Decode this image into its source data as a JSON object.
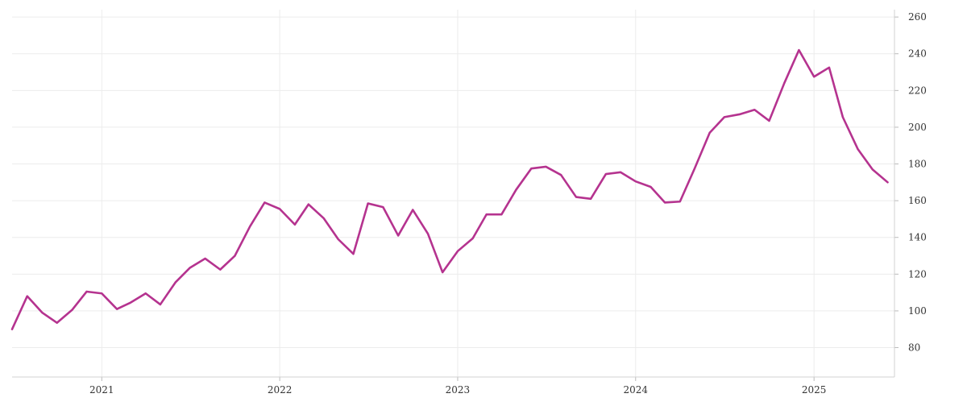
{
  "chart_data": {
    "type": "line",
    "title": "",
    "xlabel": "",
    "ylabel": "",
    "grid": true,
    "y_axis_side": "right",
    "ylim": [
      64,
      264
    ],
    "xlim": [
      "2020-07-01",
      "2025-06-15"
    ],
    "y_ticks": [
      80,
      100,
      120,
      140,
      160,
      180,
      200,
      220,
      240,
      260
    ],
    "x_ticks": [
      {
        "label": "2021",
        "date": "2021-01-01"
      },
      {
        "label": "2022",
        "date": "2022-01-01"
      },
      {
        "label": "2023",
        "date": "2023-01-01"
      },
      {
        "label": "2024",
        "date": "2024-01-01"
      },
      {
        "label": "2025",
        "date": "2025-01-01"
      }
    ],
    "series": [
      {
        "color": "#b5338f",
        "x": [
          "2020-07",
          "2020-08",
          "2020-09",
          "2020-10",
          "2020-11",
          "2020-12",
          "2021-01",
          "2021-02",
          "2021-03",
          "2021-04",
          "2021-05",
          "2021-06",
          "2021-07",
          "2021-08",
          "2021-09",
          "2021-10",
          "2021-11",
          "2021-12",
          "2022-01",
          "2022-02",
          "2022-03",
          "2022-04",
          "2022-05",
          "2022-06",
          "2022-07",
          "2022-08",
          "2022-09",
          "2022-10",
          "2022-11",
          "2022-12",
          "2023-01",
          "2023-02",
          "2023-03",
          "2023-04",
          "2023-05",
          "2023-06",
          "2023-07",
          "2023-08",
          "2023-09",
          "2023-10",
          "2023-11",
          "2023-12",
          "2024-01",
          "2024-02",
          "2024-03",
          "2024-04",
          "2024-05",
          "2024-06",
          "2024-07",
          "2024-08",
          "2024-09",
          "2024-10",
          "2024-11",
          "2024-12",
          "2025-01",
          "2025-02",
          "2025-03",
          "2025-04",
          "2025-05",
          "2025-06"
        ],
        "values": [
          90.0,
          108.0,
          99.0,
          93.5,
          100.5,
          110.5,
          109.5,
          101.0,
          104.5,
          109.5,
          103.5,
          115.5,
          123.5,
          128.5,
          122.5,
          130.0,
          146.0,
          159.0,
          155.5,
          147.0,
          158.0,
          150.5,
          139.0,
          131.0,
          158.5,
          156.5,
          141.0,
          155.0,
          142.0,
          121.0,
          132.5,
          139.5,
          152.5,
          152.5,
          166.0,
          177.5,
          178.5,
          174.0,
          162.0,
          161.0,
          174.5,
          175.5,
          170.5,
          167.5,
          159.0,
          159.5,
          177.5,
          197.0,
          205.5,
          207.0,
          209.5,
          203.5,
          224.0,
          242.0,
          227.5,
          232.5,
          205.5,
          188.0,
          177.0,
          170.0
        ]
      }
    ]
  }
}
